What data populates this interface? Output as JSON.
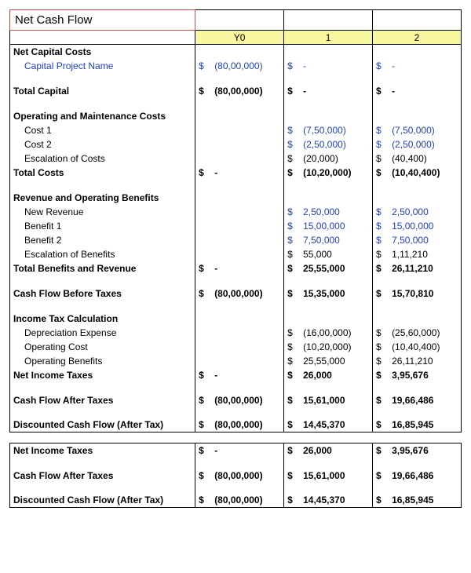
{
  "title": "Net Cash Flow",
  "colors": {
    "title_border": "#c0504d",
    "header_bg": "#f7f7a0",
    "editable_text": "#1f3fbf",
    "grid_border": "#000000",
    "background": "#ffffff"
  },
  "fonts": {
    "title_size_pt": 15,
    "body_size_pt": 12,
    "family": "Arial"
  },
  "headers": [
    "Y0",
    "1",
    "2"
  ],
  "currency_symbol": "$",
  "sections": {
    "net_capital_costs": {
      "label": "Net Capital Costs",
      "rows": [
        {
          "label": "Capital Project Name",
          "values": [
            "(80,00,000)",
            "-",
            "-"
          ],
          "blue": true
        }
      ]
    },
    "total_capital": {
      "label": "Total Capital",
      "values": [
        "(80,00,000)",
        "-",
        "-"
      ]
    },
    "om_costs": {
      "label": "Operating and Maintenance Costs",
      "rows": [
        {
          "label": "Cost 1",
          "values": [
            "",
            "(7,50,000)",
            "(7,50,000)"
          ],
          "blue": true
        },
        {
          "label": "Cost 2",
          "values": [
            "",
            "(2,50,000)",
            "(2,50,000)"
          ],
          "blue": true
        },
        {
          "label": "Escalation of Costs",
          "values": [
            "",
            "(20,000)",
            "(40,400)"
          ],
          "blue": false
        }
      ]
    },
    "total_costs": {
      "label": "Total Costs",
      "values": [
        "-",
        "(10,20,000)",
        "(10,40,400)"
      ]
    },
    "rev_benefits": {
      "label": "Revenue and Operating Benefits",
      "rows": [
        {
          "label": "New Revenue",
          "values": [
            "",
            "2,50,000",
            "2,50,000"
          ],
          "blue": true
        },
        {
          "label": "Benefit 1",
          "values": [
            "",
            "15,00,000",
            "15,00,000"
          ],
          "blue": true
        },
        {
          "label": "Benefit 2",
          "values": [
            "",
            "7,50,000",
            "7,50,000"
          ],
          "blue": true
        },
        {
          "label": "Escalation of Benefits",
          "values": [
            "",
            "55,000",
            "1,11,210"
          ],
          "blue": false
        }
      ]
    },
    "total_benefits": {
      "label": "Total Benefits and Revenue",
      "values": [
        "-",
        "25,55,000",
        "26,11,210"
      ]
    },
    "cf_before_tax": {
      "label": "Cash Flow Before Taxes",
      "values": [
        "(80,00,000)",
        "15,35,000",
        "15,70,810"
      ]
    },
    "income_tax": {
      "label": "Income Tax Calculation",
      "rows": [
        {
          "label": "Depreciation Expense",
          "values": [
            "",
            "(16,00,000)",
            "(25,60,000)"
          ]
        },
        {
          "label": "Operating Cost",
          "values": [
            "",
            "(10,20,000)",
            "(10,40,400)"
          ]
        },
        {
          "label": "Operating Benefits",
          "values": [
            "",
            "25,55,000",
            "26,11,210"
          ]
        }
      ]
    },
    "net_income_taxes": {
      "label": "Net Income Taxes",
      "values": [
        "-",
        "26,000",
        "3,95,676"
      ]
    },
    "cf_after_tax": {
      "label": "Cash Flow After Taxes",
      "values": [
        "(80,00,000)",
        "15,61,000",
        "19,66,486"
      ]
    },
    "dcf": {
      "label": "Discounted Cash Flow (After Tax)",
      "values": [
        "(80,00,000)",
        "14,45,370",
        "16,85,945"
      ]
    },
    "repeat": {
      "net_income_taxes": {
        "label": "Net Income Taxes",
        "values": [
          "-",
          "26,000",
          "3,95,676"
        ]
      },
      "cf_after_tax": {
        "label": "Cash Flow After Taxes",
        "values": [
          "(80,00,000)",
          "15,61,000",
          "19,66,486"
        ]
      },
      "dcf": {
        "label": "Discounted Cash Flow (After Tax)",
        "values": [
          "(80,00,000)",
          "14,45,370",
          "16,85,945"
        ]
      }
    }
  }
}
